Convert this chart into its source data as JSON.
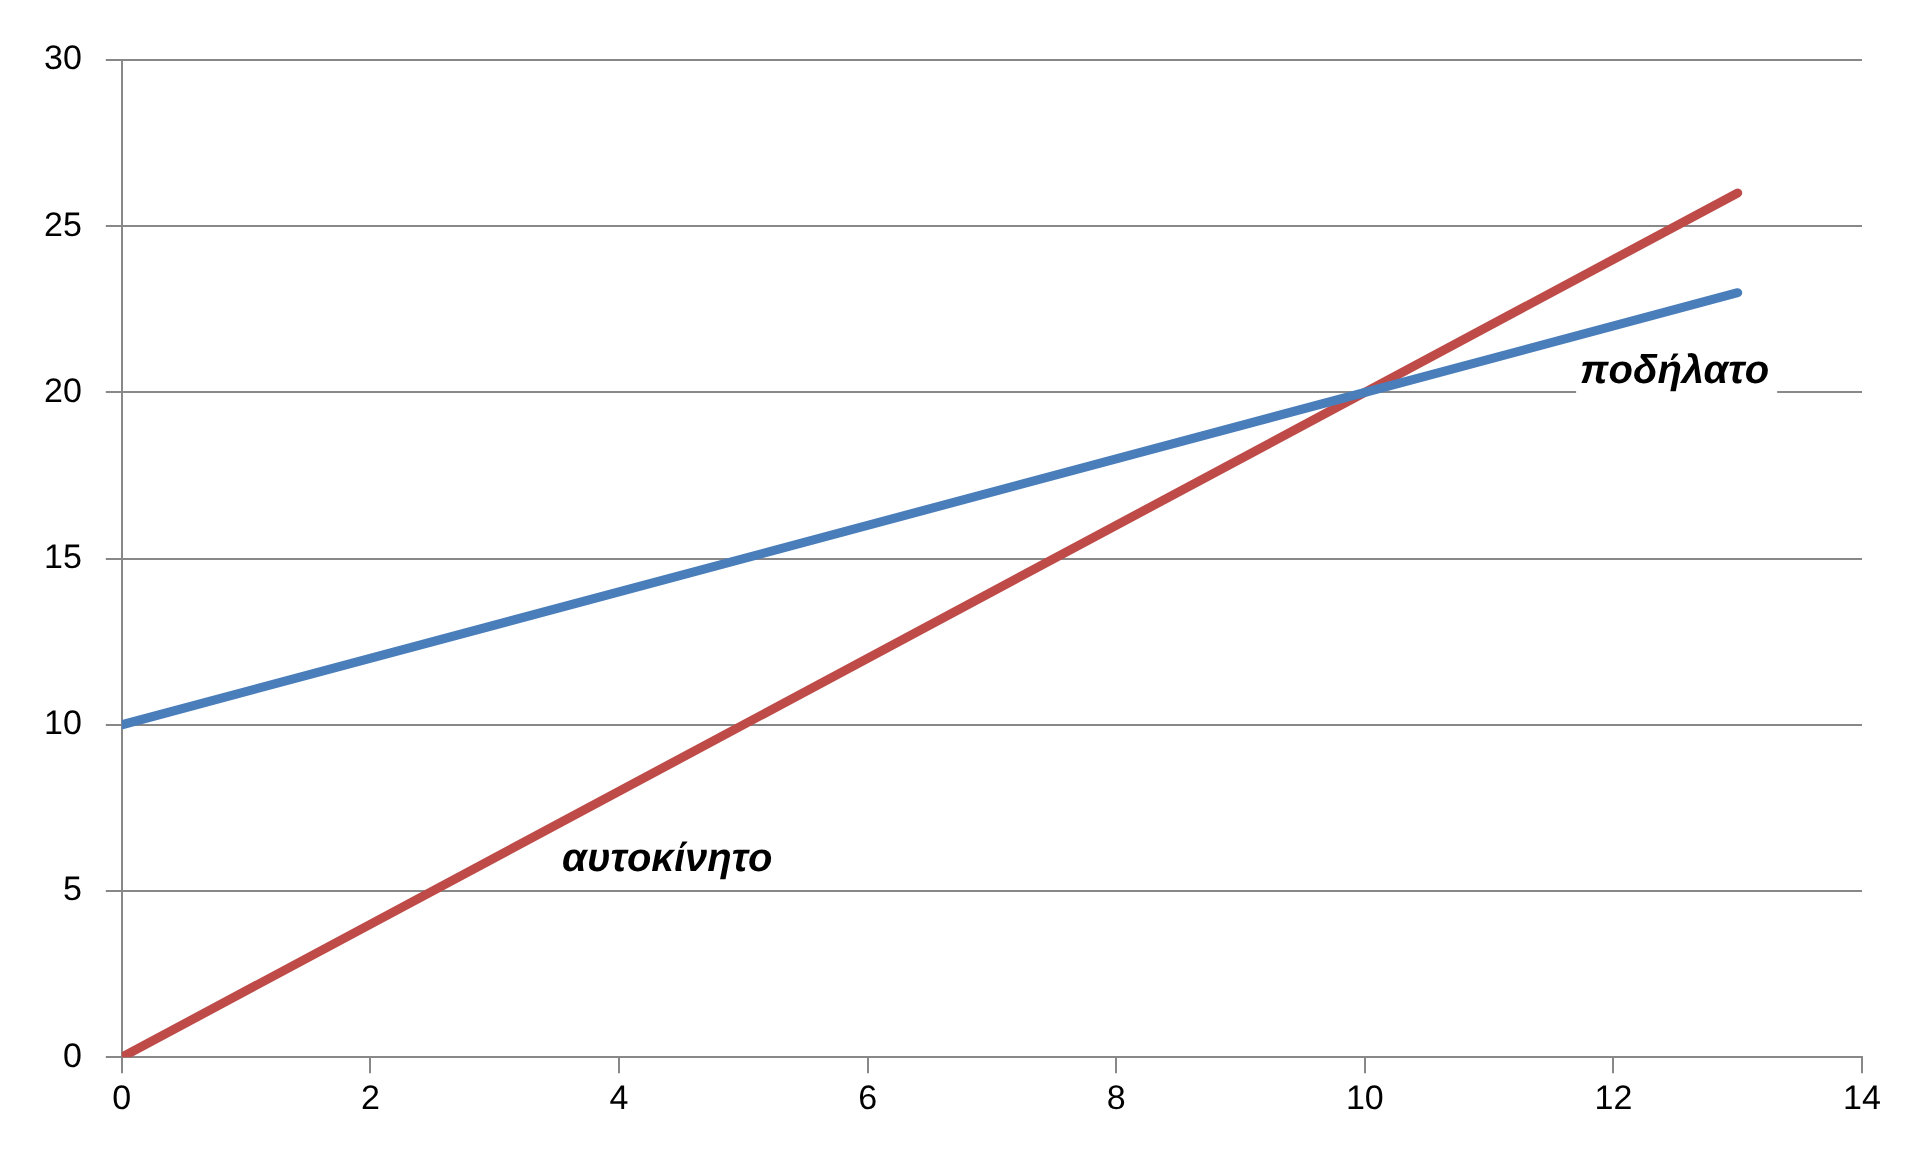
{
  "chart_data": {
    "type": "line",
    "x": [
      0,
      13
    ],
    "series": [
      {
        "name": "ποδήλατο",
        "color": "#4a7ebb",
        "values": [
          10,
          23
        ]
      },
      {
        "name": "αυτοκίνητο",
        "color": "#be4b48",
        "values": [
          0,
          26
        ]
      }
    ],
    "xlim": [
      0,
      14
    ],
    "xticks": [
      0,
      2,
      4,
      6,
      8,
      10,
      12,
      14
    ],
    "ylim": [
      0,
      30
    ],
    "yticks": [
      0,
      5,
      10,
      15,
      20,
      25,
      30
    ],
    "grid": "y",
    "legend": false,
    "marker": "none",
    "line_style": "solid"
  }
}
